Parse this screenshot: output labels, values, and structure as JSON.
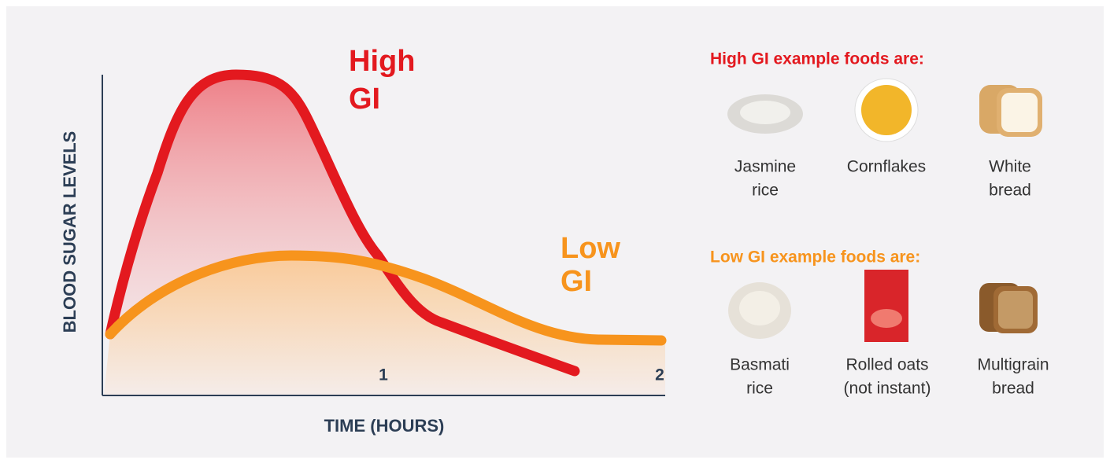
{
  "chart": {
    "y_axis_label": "BLOOD SUGAR LEVELS",
    "x_axis_label": "TIME (HOURS)",
    "x_tick_labels": [
      "1",
      "2"
    ],
    "curve_labels": [
      {
        "lines": [
          "High",
          "GI"
        ]
      },
      {
        "lines": [
          "Low",
          "GI"
        ]
      }
    ]
  },
  "high_gi": {
    "heading": "High GI example foods are:",
    "foods": [
      {
        "label_lines": [
          "Jasmine",
          "rice"
        ]
      },
      {
        "label_lines": [
          "Cornflakes"
        ]
      },
      {
        "label_lines": [
          "White",
          "bread"
        ]
      }
    ]
  },
  "low_gi": {
    "heading": "Low GI example foods are:",
    "foods": [
      {
        "label_lines": [
          "Basmati",
          "rice"
        ]
      },
      {
        "label_lines": [
          "Rolled oats",
          "(not instant)"
        ]
      },
      {
        "label_lines": [
          "Multigrain",
          "bread"
        ]
      }
    ]
  }
}
